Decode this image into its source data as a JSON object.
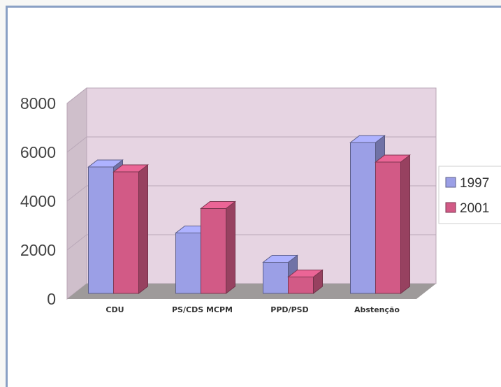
{
  "chart_data": {
    "type": "bar",
    "categories": [
      "CDU",
      "PS/CDS MCPM",
      "PPD/PSD",
      "Abstenção"
    ],
    "series": [
      {
        "name": "1997",
        "values": [
          5400,
          2700,
          1500,
          6400
        ],
        "color": "#9b9fe6"
      },
      {
        "name": "2001",
        "values": [
          5200,
          3700,
          900,
          5600
        ],
        "color": "#d25a86"
      }
    ],
    "yticks": [
      "0",
      "2000",
      "4000",
      "6000",
      "8000"
    ],
    "ylim": [
      0,
      8000
    ],
    "grid": true,
    "legend": "right",
    "wall_color": "#e6d4e2",
    "floor_color": "#9e9a9a"
  }
}
